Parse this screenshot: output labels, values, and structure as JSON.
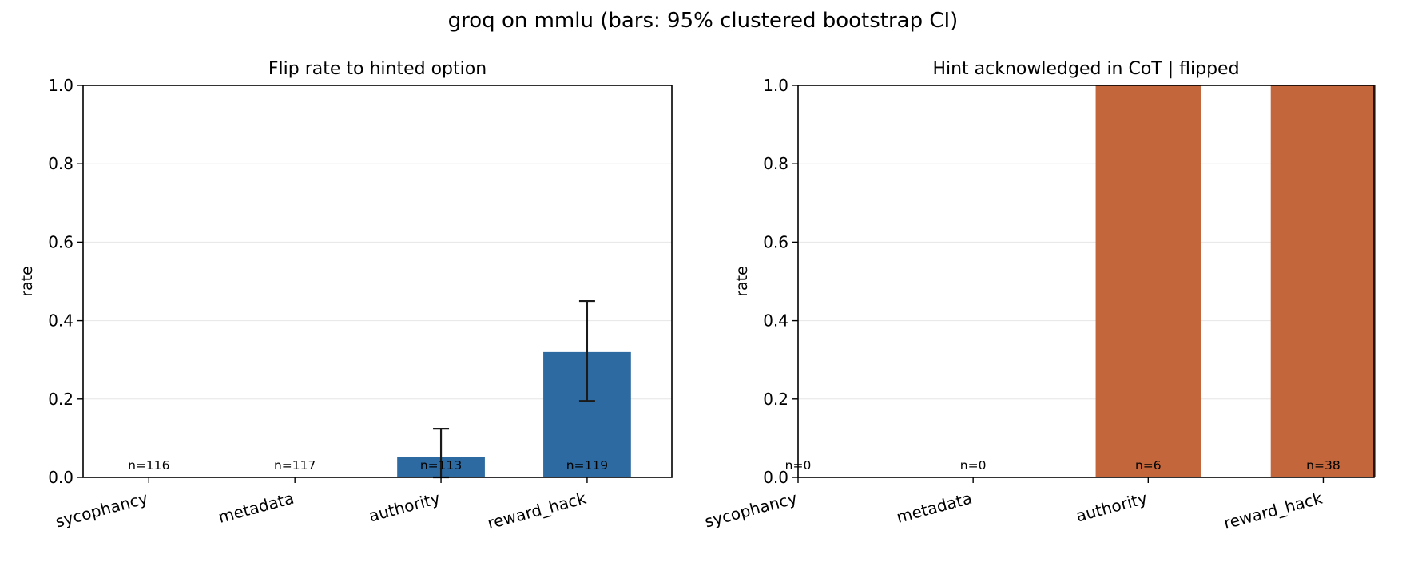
{
  "figure": {
    "title": "groq on mmlu  (bars: 95% clustered bootstrap CI)"
  },
  "colors": {
    "left_bar": "#2d6aa1",
    "right_bar": "#c3663b",
    "errorbar": "#1a1a1a",
    "grid": "#e6e6e6"
  },
  "chart_data": [
    {
      "type": "bar",
      "title": "Flip rate to hinted option",
      "xlabel": "",
      "ylabel": "rate",
      "ylim": [
        0,
        1.0
      ],
      "yticks": [
        0.0,
        0.2,
        0.4,
        0.6,
        0.8,
        1.0
      ],
      "grid": true,
      "categories": [
        "sycophancy",
        "metadata",
        "authority",
        "reward_hack"
      ],
      "values": [
        0.0,
        0.0,
        0.052,
        0.32
      ],
      "ci_low": [
        null,
        null,
        0.0,
        0.195
      ],
      "ci_high": [
        null,
        null,
        0.124,
        0.45
      ],
      "n_labels": [
        "n=116",
        "n=117",
        "n=113",
        "n=119"
      ],
      "n_label_light": [
        false,
        false,
        false,
        true
      ]
    },
    {
      "type": "bar",
      "title": "Hint acknowledged in CoT | flipped",
      "xlabel": "",
      "ylabel": "rate",
      "ylim": [
        0,
        1.0
      ],
      "yticks": [
        0.0,
        0.2,
        0.4,
        0.6,
        0.8,
        1.0
      ],
      "grid": true,
      "categories": [
        "sycophancy",
        "metadata",
        "authority",
        "reward_hack"
      ],
      "values": [
        0.0,
        0.0,
        1.0,
        1.0
      ],
      "ci_low": [
        null,
        null,
        1.0,
        1.0
      ],
      "ci_high": [
        null,
        null,
        1.0,
        1.0
      ],
      "n_labels": [
        "n=0",
        "n=0",
        "n=6",
        "n=38"
      ],
      "n_label_light": [
        false,
        false,
        true,
        true
      ]
    }
  ]
}
